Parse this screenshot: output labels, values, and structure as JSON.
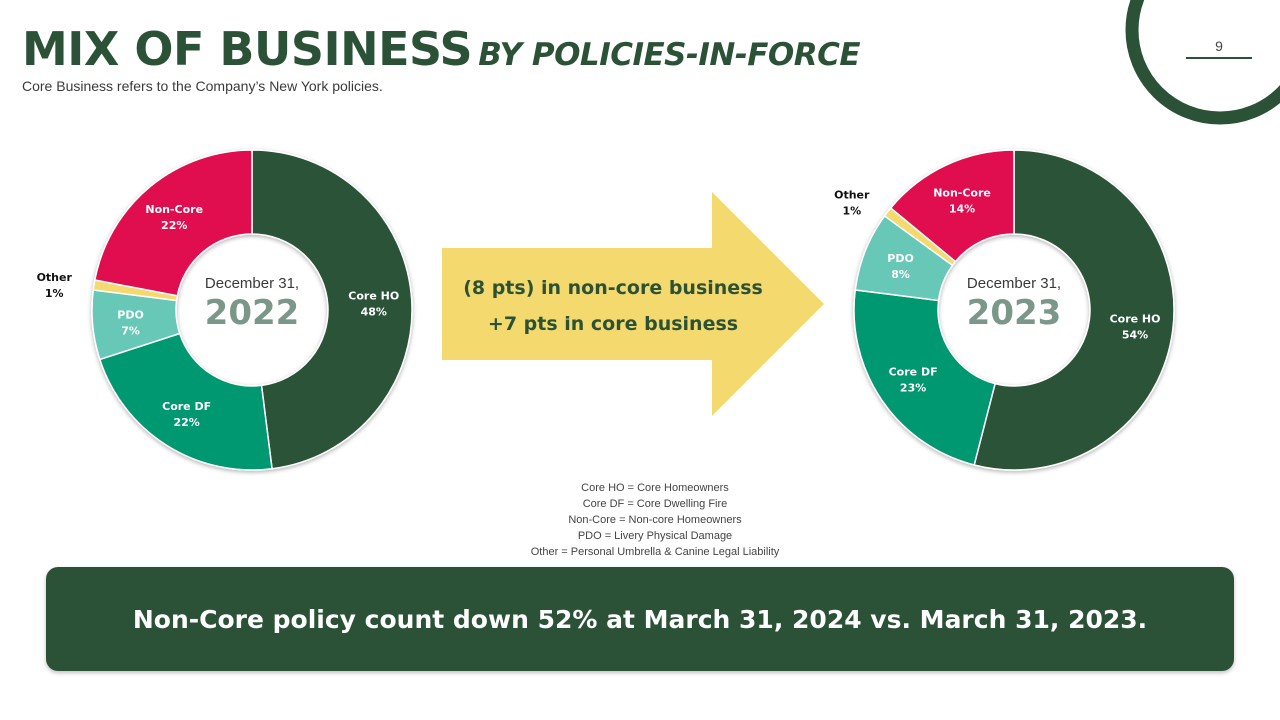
{
  "slide": {
    "title_main": "MIX OF BUSINESS",
    "title_sub": "BY POLICIES-IN-FORCE",
    "subtitle": "Core Business refers to the Company’s New York policies.",
    "page_number": "9"
  },
  "arrow": {
    "line1": "(8 pts) in non-core business",
    "line2": "+7 pts in core business",
    "color": "#f4d96e"
  },
  "legend": [
    "Core HO = Core Homeowners",
    "Core DF = Core Dwelling Fire",
    "Non-Core = Non-core Homeowners",
    "PDO = Livery Physical Damage",
    "Other = Personal Umbrella & Canine Legal Liability"
  ],
  "banner": {
    "text": "Non-Core policy count down 52% at March 31, 2024 vs. March 31, 2023."
  },
  "colors": {
    "core_ho": "#2b5237",
    "core_df": "#009870",
    "pdo": "#68c8b8",
    "other": "#f4d96e",
    "non_core": "#e01050",
    "accent": "#2b5237"
  },
  "chart_data": [
    {
      "type": "pie",
      "center_date": "December 31,",
      "center_year": "2022",
      "slices": [
        {
          "label": "Core HO",
          "value": 48,
          "value_label": "48%",
          "color": "#2b5237"
        },
        {
          "label": "Core DF",
          "value": 22,
          "value_label": "22%",
          "color": "#009870"
        },
        {
          "label": "PDO",
          "value": 7,
          "value_label": "7%",
          "color": "#68c8b8"
        },
        {
          "label": "Other",
          "value": 1,
          "value_label": "1%",
          "color": "#f4d96e"
        },
        {
          "label": "Non-Core",
          "value": 22,
          "value_label": "22%",
          "color": "#e01050"
        }
      ]
    },
    {
      "type": "pie",
      "center_date": "December 31,",
      "center_year": "2023",
      "slices": [
        {
          "label": "Core HO",
          "value": 54,
          "value_label": "54%",
          "color": "#2b5237"
        },
        {
          "label": "Core DF",
          "value": 23,
          "value_label": "23%",
          "color": "#009870"
        },
        {
          "label": "PDO",
          "value": 8,
          "value_label": "8%",
          "color": "#68c8b8"
        },
        {
          "label": "Other",
          "value": 1,
          "value_label": "1%",
          "color": "#f4d96e"
        },
        {
          "label": "Non-Core",
          "value": 14,
          "value_label": "14%",
          "color": "#e01050"
        }
      ]
    }
  ]
}
